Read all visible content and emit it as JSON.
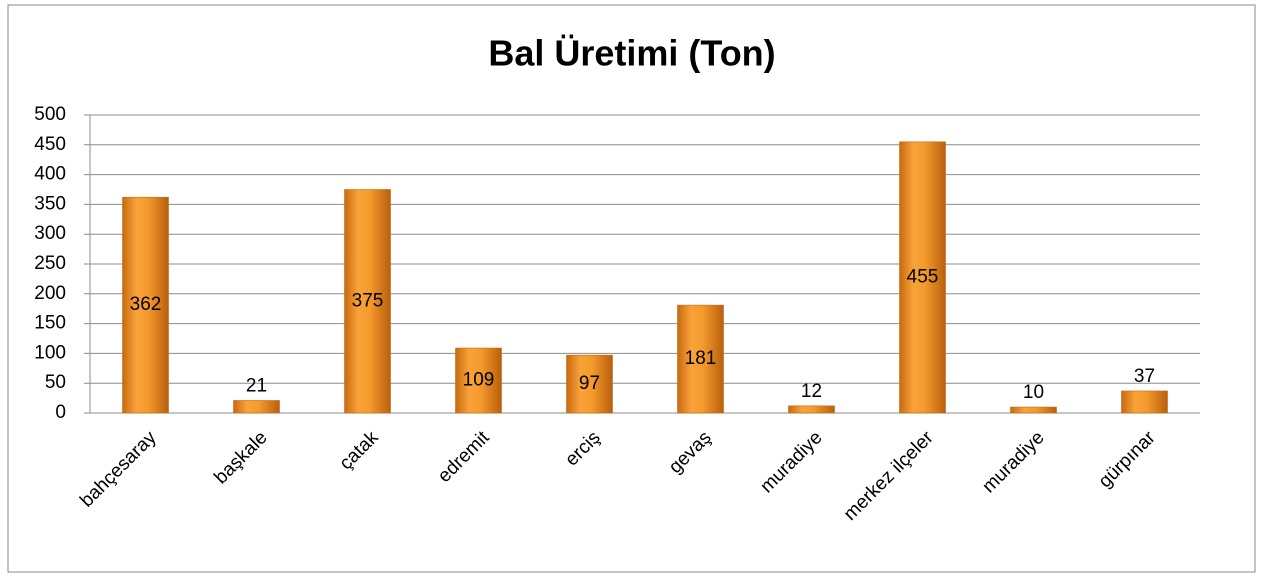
{
  "chart_data": {
    "type": "bar",
    "title": "Bal Üretimi (Ton)",
    "categories": [
      "bahçesaray",
      "başkale",
      "çatak",
      "edremit",
      "erciş",
      "gevaş",
      "muradiye",
      "merkez ilçeler",
      "muradiye",
      "gürpınar"
    ],
    "values": [
      362,
      21,
      375,
      109,
      97,
      181,
      12,
      455,
      10,
      37
    ],
    "color": "#f59a2c",
    "ylim": [
      0,
      500
    ],
    "yticks": [
      0,
      50,
      100,
      150,
      200,
      250,
      300,
      350,
      400,
      450,
      500
    ],
    "grid": true
  }
}
